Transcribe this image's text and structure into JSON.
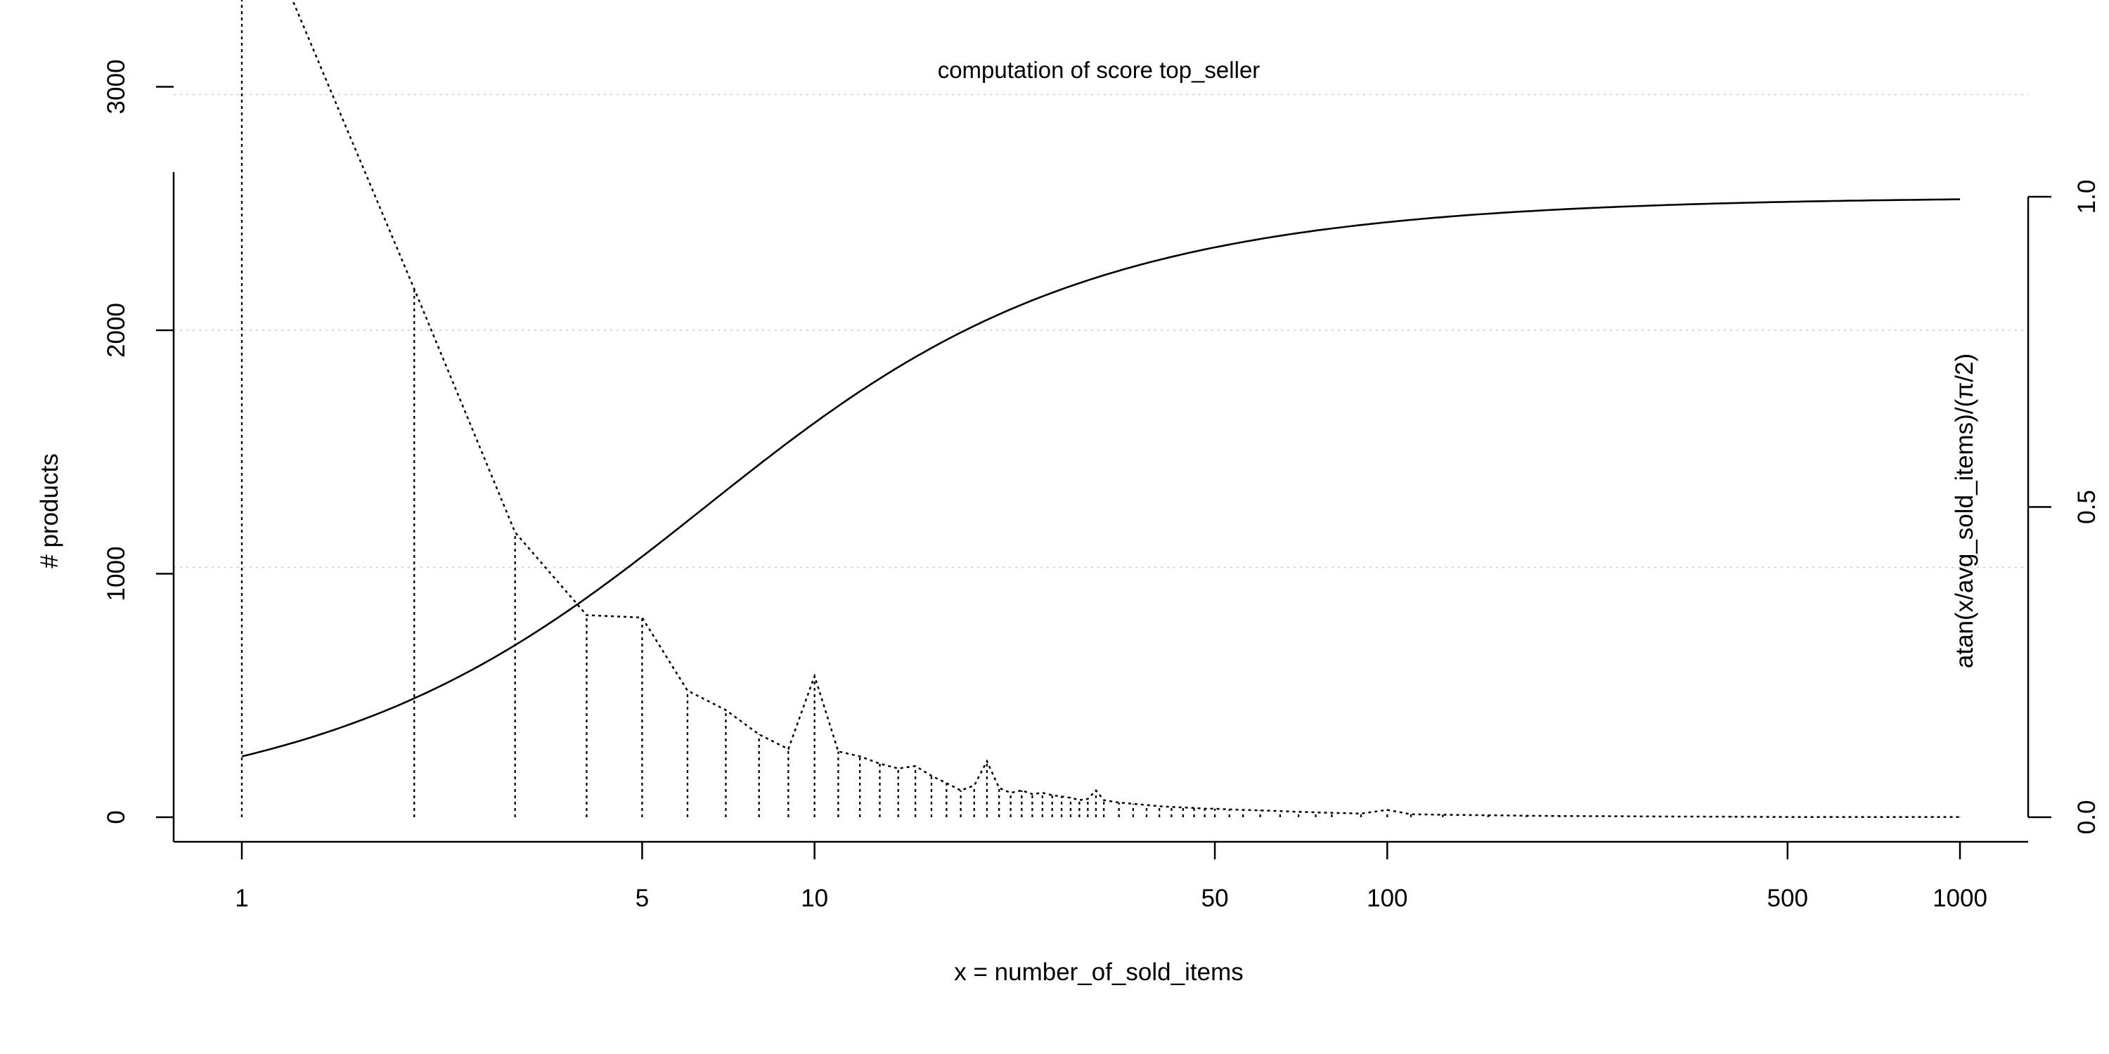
{
  "chart_data": {
    "type": "line",
    "title": "computation of score top_seller",
    "xlabel": "x = number_of_sold_items",
    "ylabel": "# products",
    "ylabel_right": "atan(x/avg_sold_items)/(π/2)",
    "x_scale": "log",
    "xlim": [
      1,
      1000
    ],
    "ylim_left": [
      0,
      3850
    ],
    "ylim_right": [
      0,
      1
    ],
    "x_ticks": [
      1,
      5,
      10,
      50,
      100,
      500,
      1000
    ],
    "x_tick_labels": [
      "1",
      "5",
      "10",
      "50",
      "100",
      "500",
      "1000"
    ],
    "y_ticks_left": [
      0,
      1000,
      2000,
      3000
    ],
    "y_tick_labels_left": [
      "0",
      "1000",
      "2000",
      "3000"
    ],
    "y_ticks_right": [
      0,
      0.5,
      1
    ],
    "y_tick_labels_right": [
      "0.0",
      "0.5",
      "1.0"
    ],
    "grid": "horizontal dotted",
    "series": [
      {
        "axis": "left",
        "style": "dotted line with vertical drop lines",
        "points": [
          [
            1,
            3850
          ],
          [
            2,
            2170
          ],
          [
            3,
            1170
          ],
          [
            4,
            830
          ],
          [
            5,
            820
          ],
          [
            6,
            520
          ],
          [
            7,
            440
          ],
          [
            8,
            340
          ],
          [
            9,
            280
          ],
          [
            10,
            580
          ],
          [
            11,
            270
          ],
          [
            12,
            250
          ],
          [
            13,
            220
          ],
          [
            14,
            200
          ],
          [
            15,
            210
          ],
          [
            16,
            170
          ],
          [
            17,
            140
          ],
          [
            18,
            110
          ],
          [
            19,
            130
          ],
          [
            20,
            230
          ],
          [
            21,
            120
          ],
          [
            22,
            100
          ],
          [
            23,
            110
          ],
          [
            24,
            95
          ],
          [
            25,
            100
          ],
          [
            26,
            90
          ],
          [
            27,
            85
          ],
          [
            28,
            80
          ],
          [
            29,
            70
          ],
          [
            30,
            75
          ],
          [
            31,
            110
          ],
          [
            32,
            70
          ],
          [
            34,
            60
          ],
          [
            36,
            55
          ],
          [
            38,
            50
          ],
          [
            40,
            45
          ],
          [
            42,
            42
          ],
          [
            44,
            40
          ],
          [
            46,
            38
          ],
          [
            48,
            35
          ],
          [
            50,
            35
          ],
          [
            53,
            32
          ],
          [
            56,
            30
          ],
          [
            60,
            28
          ],
          [
            65,
            25
          ],
          [
            70,
            22
          ],
          [
            75,
            20
          ],
          [
            80,
            18
          ],
          [
            90,
            15
          ],
          [
            100,
            30
          ],
          [
            110,
            12
          ],
          [
            125,
            10
          ],
          [
            150,
            8
          ],
          [
            175,
            6
          ],
          [
            200,
            5
          ],
          [
            250,
            4
          ],
          [
            300,
            3
          ],
          [
            400,
            2
          ],
          [
            500,
            1
          ],
          [
            600,
            1
          ],
          [
            700,
            1
          ],
          [
            800,
            1
          ],
          [
            900,
            1
          ],
          [
            1000,
            1
          ]
        ]
      },
      {
        "axis": "right",
        "style": "solid line",
        "function": "atan(x/avg_sold_items)/(pi/2)",
        "points": [
          [
            1,
            0.098
          ],
          [
            2,
            0.194
          ],
          [
            3,
            0.282
          ],
          [
            4,
            0.362
          ],
          [
            5,
            0.431
          ],
          [
            7,
            0.54
          ],
          [
            10,
            0.651
          ],
          [
            15,
            0.752
          ],
          [
            20,
            0.808
          ],
          [
            30,
            0.869
          ],
          [
            50,
            0.92
          ],
          [
            100,
            0.96
          ],
          [
            200,
            0.98
          ],
          [
            500,
            0.992
          ],
          [
            1000,
            0.996
          ]
        ]
      }
    ]
  }
}
